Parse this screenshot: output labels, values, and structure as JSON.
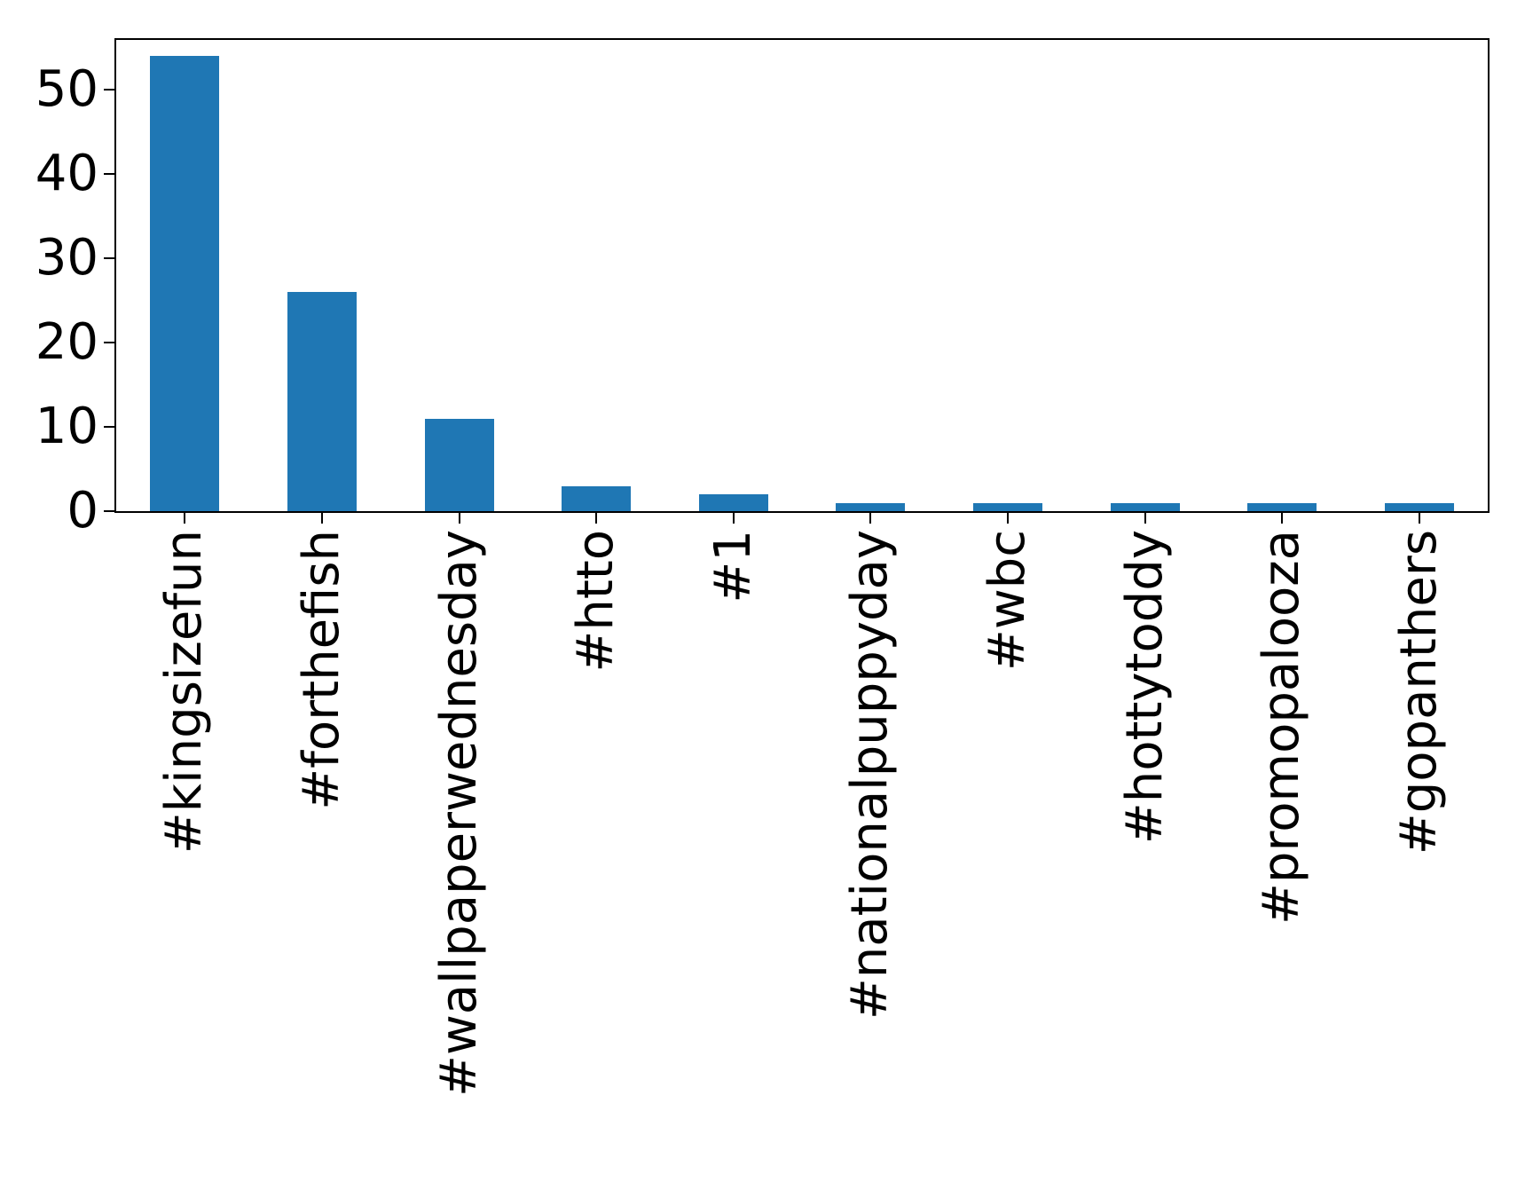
{
  "chart_data": {
    "type": "bar",
    "title": "",
    "xlabel": "",
    "ylabel": "",
    "categories": [
      "#kingsizefun",
      "#forthefish",
      "#wallpaperwednesday",
      "#htto",
      "#1",
      "#nationalpuppyday",
      "#wbc",
      "#hottytoddy",
      "#promopalooza",
      "#gopanthers"
    ],
    "values": [
      54,
      26,
      11,
      3,
      2,
      1,
      1,
      1,
      1,
      1
    ],
    "yticks": [
      0,
      10,
      20,
      30,
      40,
      50
    ],
    "ylim": [
      0,
      55.9
    ],
    "grid": false,
    "legend": null,
    "bar_color": "#1f77b4",
    "axis_color": "#000000",
    "background_color": "#ffffff",
    "xtick_label_rotation": 90
  }
}
